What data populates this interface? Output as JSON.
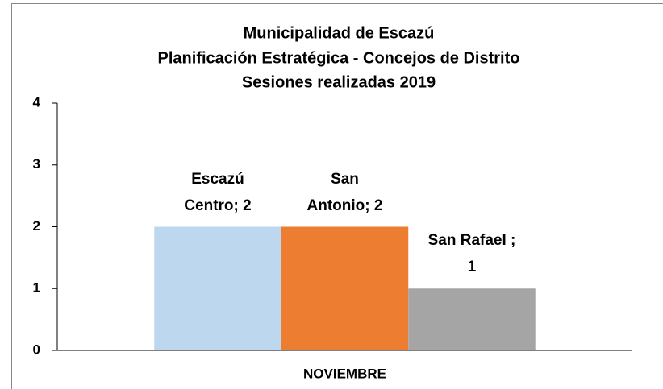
{
  "chart_data": {
    "type": "bar",
    "title": "Municipalidad de Escazú",
    "subtitle": [
      "Planificación Estratégica - Concejos de Distrito",
      "Sesiones realizadas  2019"
    ],
    "categories": [
      "NOVIEMBRE"
    ],
    "series": [
      {
        "name": "Escazú Centro",
        "color": "#bdd7ee",
        "values": [
          2
        ],
        "value_labels": [
          "Escazú\nCentro; 2"
        ]
      },
      {
        "name": "San Antonio",
        "color": "#ed7d31",
        "values": [
          2
        ],
        "value_labels": [
          "San\nAntonio; 2"
        ]
      },
      {
        "name": "San Rafael",
        "color": "#a5a5a5",
        "values": [
          1
        ],
        "value_labels": [
          "San Rafael ;\n1"
        ]
      }
    ],
    "ylim": [
      0,
      4
    ],
    "yticks": [
      0,
      1,
      2,
      3,
      4
    ],
    "grid": false,
    "legend": false
  }
}
